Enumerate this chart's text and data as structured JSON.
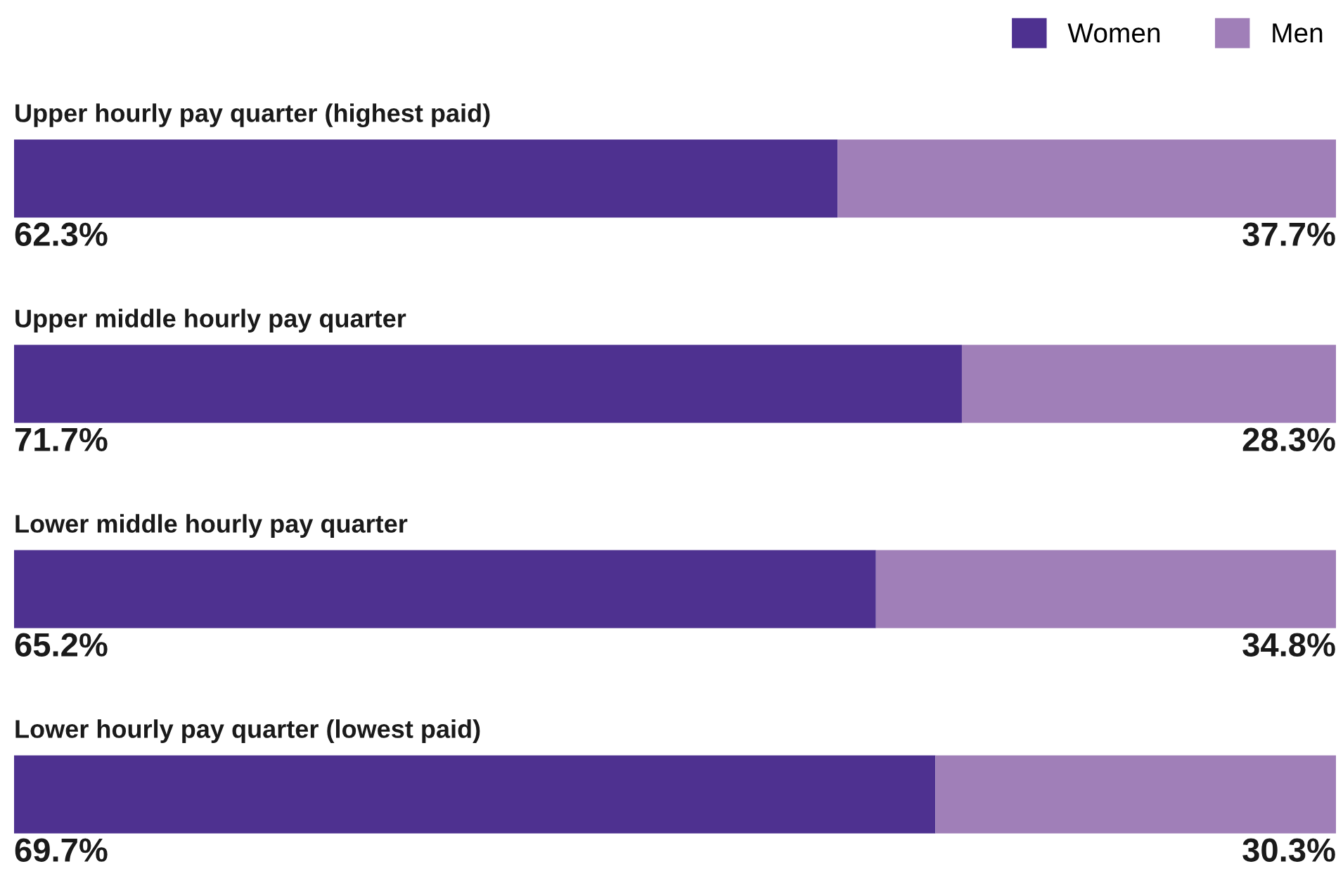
{
  "chart_data": {
    "type": "bar",
    "orientation": "horizontal",
    "stacked": true,
    "categories": [
      "Upper hourly pay quarter (highest paid)",
      "Upper middle hourly pay quarter",
      "Lower middle hourly pay quarter",
      "Lower hourly pay quarter (lowest paid)"
    ],
    "series": [
      {
        "name": "Women",
        "color": "#4e3190",
        "values": [
          62.3,
          71.7,
          65.2,
          69.7
        ],
        "value_labels": [
          "62.3%",
          "71.7%",
          "65.2%",
          "69.7%"
        ]
      },
      {
        "name": "Men",
        "color": "#a07fb8",
        "values": [
          37.7,
          28.3,
          34.8,
          30.3
        ],
        "value_labels": [
          "37.7%",
          "28.3%",
          "34.8%",
          "30.3%"
        ]
      }
    ],
    "legend": "top right"
  }
}
